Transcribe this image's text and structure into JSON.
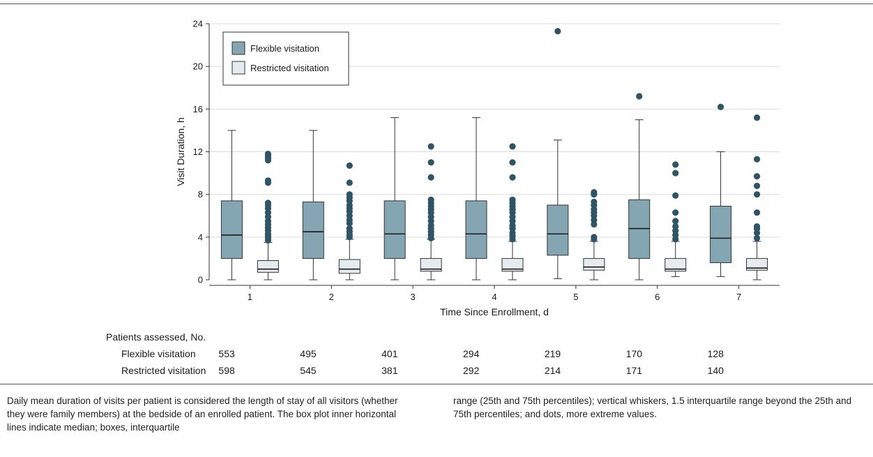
{
  "chart_data": {
    "type": "boxplot",
    "xlabel": "Time Since Enrollment, d",
    "ylabel": "Visit Duration, h",
    "ylim": [
      0,
      24
    ],
    "yticks": [
      0,
      4,
      8,
      12,
      16,
      20,
      24
    ],
    "categories": [
      "1",
      "2",
      "3",
      "4",
      "5",
      "6",
      "7"
    ],
    "grid": true,
    "legend_position": "top-left",
    "series": [
      {
        "name": "Flexible visitation",
        "color": "#84a6b3",
        "boxes": [
          {
            "min": 0,
            "q1": 2.0,
            "median": 4.2,
            "q3": 7.4,
            "max": 14.0,
            "outliers": []
          },
          {
            "min": 0,
            "q1": 2.0,
            "median": 4.5,
            "q3": 7.3,
            "max": 14.0,
            "outliers": []
          },
          {
            "min": 0,
            "q1": 2.0,
            "median": 4.3,
            "q3": 7.4,
            "max": 15.2,
            "outliers": []
          },
          {
            "min": 0,
            "q1": 2.0,
            "median": 4.3,
            "q3": 7.4,
            "max": 15.2,
            "outliers": []
          },
          {
            "min": 0.1,
            "q1": 2.3,
            "median": 4.3,
            "q3": 7.0,
            "max": 13.1,
            "outliers": [
              23.3
            ]
          },
          {
            "min": 0,
            "q1": 2.0,
            "median": 4.8,
            "q3": 7.5,
            "max": 15.0,
            "outliers": [
              17.2
            ]
          },
          {
            "min": 0.3,
            "q1": 1.6,
            "median": 3.9,
            "q3": 6.9,
            "max": 12.0,
            "outliers": [
              16.2
            ]
          }
        ]
      },
      {
        "name": "Restricted visitation",
        "color": "#e4ecef",
        "boxes": [
          {
            "min": 0,
            "q1": 0.7,
            "median": 1.0,
            "q3": 1.8,
            "max": 3.5,
            "outliers": [
              3.7,
              3.9,
              4.1,
              4.3,
              4.6,
              4.9,
              5.2,
              5.5,
              5.9,
              6.3,
              6.7,
              7.0,
              7.2,
              9.1,
              9.3,
              11.2,
              11.4,
              11.6,
              11.8
            ]
          },
          {
            "min": 0,
            "q1": 0.6,
            "median": 1.0,
            "q3": 1.9,
            "max": 3.8,
            "outliers": [
              4.0,
              4.2,
              4.5,
              4.8,
              5.3,
              5.6,
              6.0,
              6.4,
              6.7,
              7.0,
              7.4,
              7.7,
              8.0,
              9.1,
              10.7
            ]
          },
          {
            "min": 0,
            "q1": 0.8,
            "median": 1.0,
            "q3": 2.0,
            "max": 3.8,
            "outliers": [
              3.9,
              4.2,
              4.5,
              4.8,
              5.1,
              5.5,
              5.9,
              6.3,
              6.6,
              6.9,
              7.2,
              7.5,
              9.6,
              11.0,
              12.5
            ]
          },
          {
            "min": 0,
            "q1": 0.8,
            "median": 1.0,
            "q3": 2.0,
            "max": 3.6,
            "outliers": [
              3.8,
              4.1,
              4.4,
              4.8,
              5.1,
              5.5,
              5.9,
              6.3,
              6.6,
              6.9,
              7.2,
              7.5,
              9.6,
              11.0,
              12.5
            ]
          },
          {
            "min": 0,
            "q1": 0.9,
            "median": 1.2,
            "q3": 2.0,
            "max": 3.6,
            "outliers": [
              3.8,
              4.0,
              5.2,
              5.6,
              6.0,
              6.3,
              6.6,
              7.0,
              7.3,
              8.0,
              8.2
            ]
          },
          {
            "min": 0.3,
            "q1": 0.8,
            "median": 1.0,
            "q3": 2.0,
            "max": 3.6,
            "outliers": [
              3.8,
              4.2,
              4.6,
              5.0,
              5.5,
              6.3,
              7.9,
              10.0,
              10.8
            ]
          },
          {
            "min": 0,
            "q1": 0.9,
            "median": 1.1,
            "q3": 2.0,
            "max": 3.6,
            "outliers": [
              3.9,
              4.4,
              4.8,
              5.0,
              6.3,
              8.0,
              8.8,
              9.7,
              11.3,
              15.2
            ]
          }
        ]
      }
    ]
  },
  "table": {
    "title": "Patients assessed, No.",
    "rows": [
      {
        "label": "Flexible visitation",
        "values": [
          "553",
          "495",
          "401",
          "294",
          "219",
          "170",
          "128"
        ]
      },
      {
        "label": "Restricted visitation",
        "values": [
          "598",
          "545",
          "381",
          "292",
          "214",
          "171",
          "140"
        ]
      }
    ]
  },
  "caption": {
    "left": "Daily mean duration of visits per patient is considered the length of stay of all visitors (whether they were family members) at the bedside of an enrolled patient. The box plot inner horizontal lines indicate median; boxes, interquartile",
    "right": "range (25th and 75th percentiles); vertical whiskers, 1.5 interquartile range beyond the 25th and 75th percentiles; and dots, more extreme values."
  }
}
